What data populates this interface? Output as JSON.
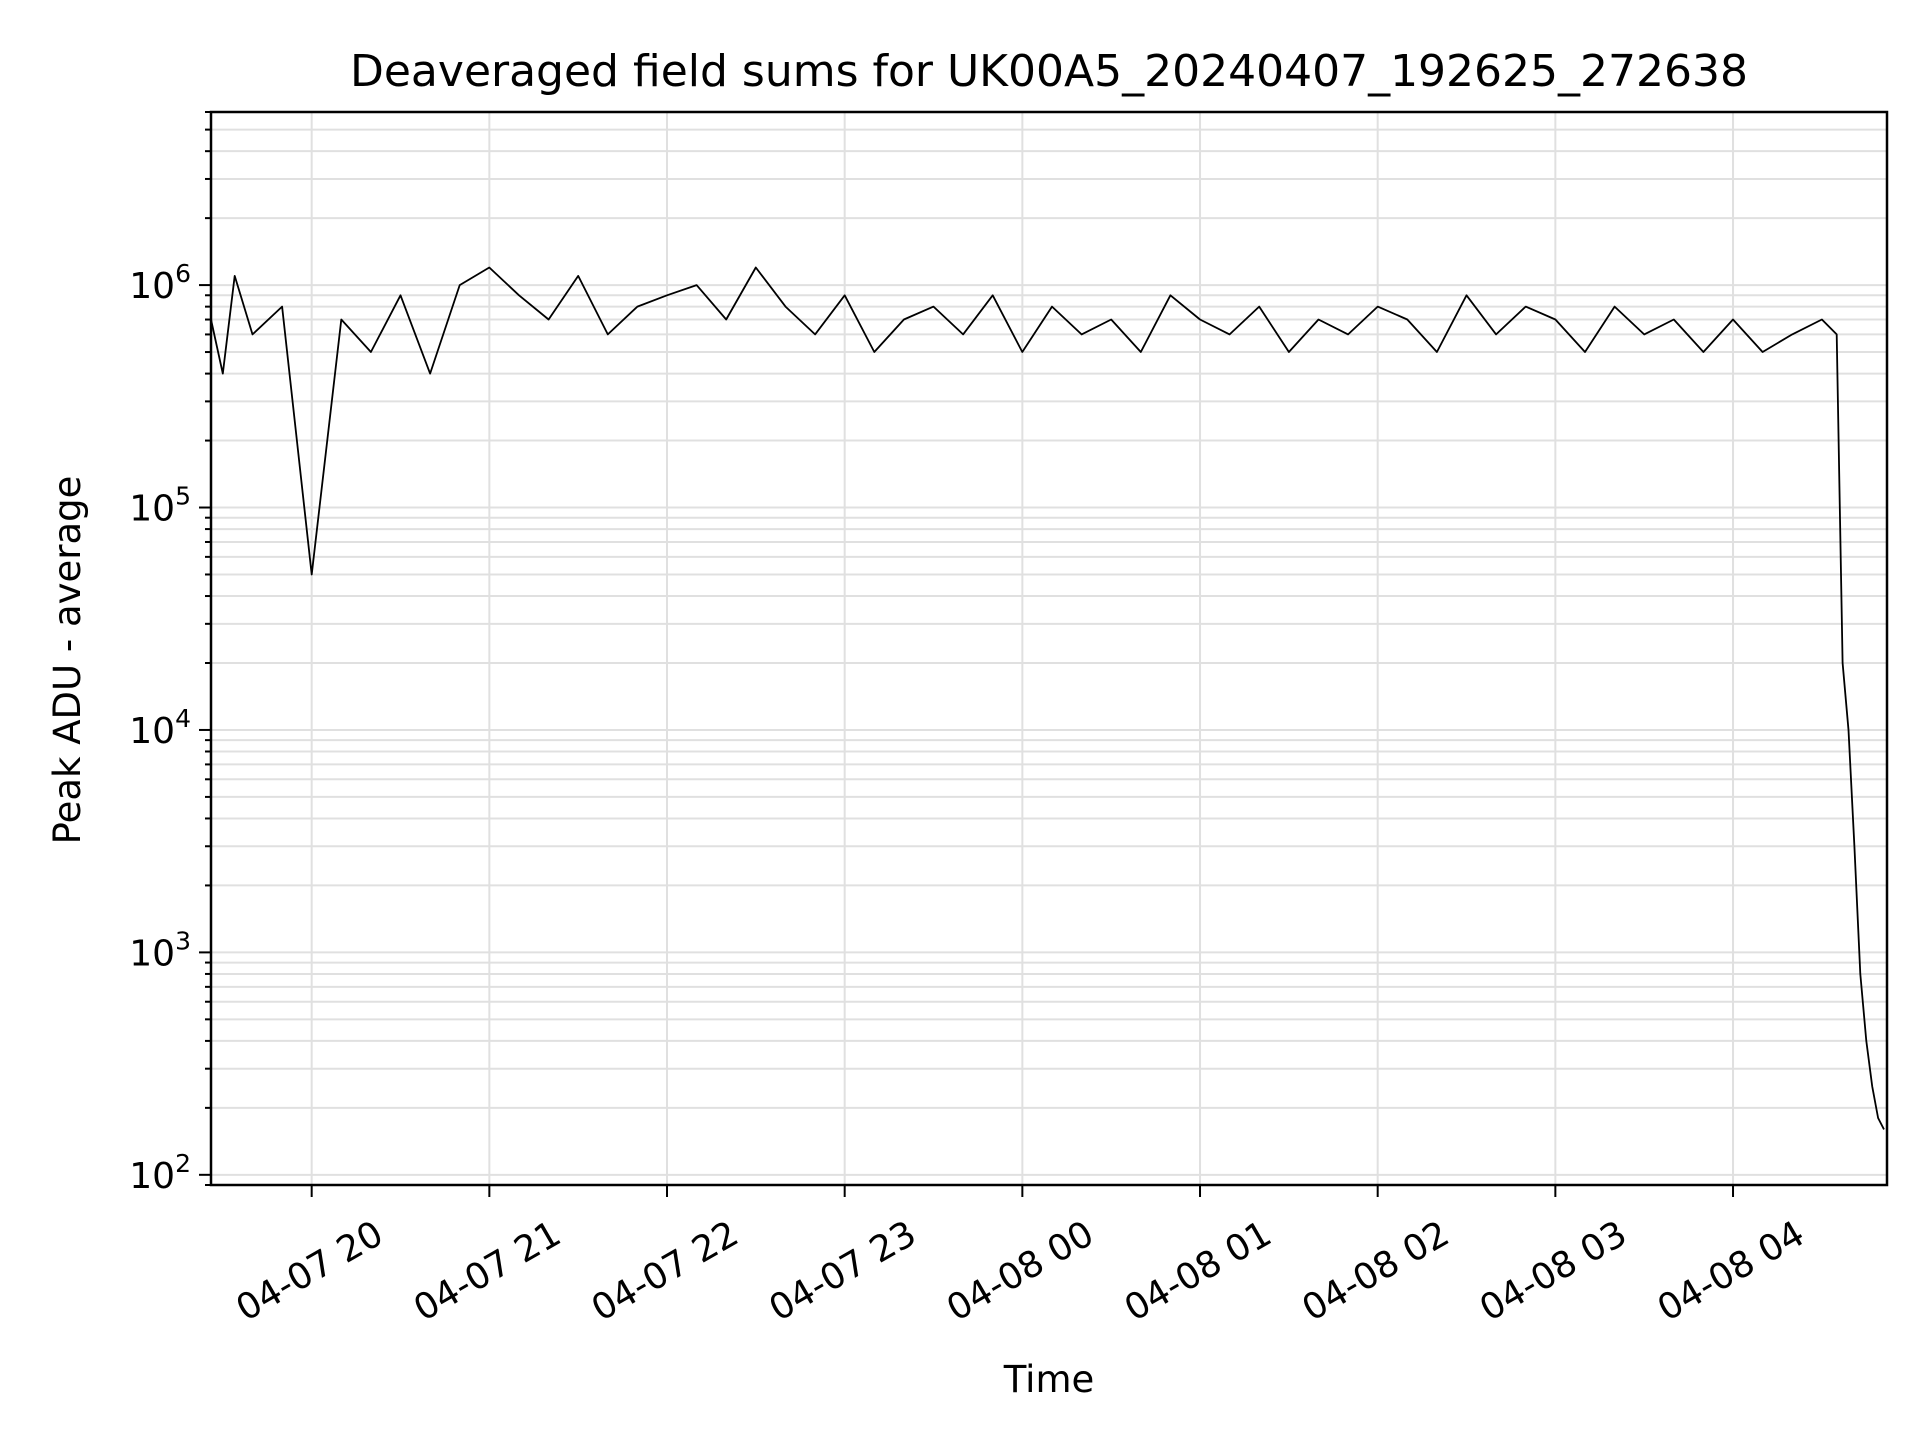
{
  "chart_data": {
    "type": "line",
    "title": "Deaveraged field sums for UK00A5_20240407_192625_272638",
    "xlabel": "Time",
    "ylabel": "Peak ADU - average",
    "x_type": "time",
    "xlim": [
      "2024-04-07 19:26",
      "2024-04-08 04:52"
    ],
    "yscale": "log",
    "ylim": [
      90,
      6000000
    ],
    "grid": true,
    "line_color": "#000000",
    "grid_color": "#e0e0e0",
    "x_ticks": [
      {
        "value": "2024-04-07 20:00",
        "label": "04-07 20"
      },
      {
        "value": "2024-04-07 21:00",
        "label": "04-07 21"
      },
      {
        "value": "2024-04-07 22:00",
        "label": "04-07 22"
      },
      {
        "value": "2024-04-07 23:00",
        "label": "04-07 23"
      },
      {
        "value": "2024-04-08 00:00",
        "label": "04-08 00"
      },
      {
        "value": "2024-04-08 01:00",
        "label": "04-08 01"
      },
      {
        "value": "2024-04-08 02:00",
        "label": "04-08 02"
      },
      {
        "value": "2024-04-08 03:00",
        "label": "04-08 03"
      },
      {
        "value": "2024-04-08 04:00",
        "label": "04-08 04"
      }
    ],
    "y_ticks": [
      {
        "value": 100,
        "base": "10",
        "exp": "2"
      },
      {
        "value": 1000,
        "base": "10",
        "exp": "3"
      },
      {
        "value": 10000,
        "base": "10",
        "exp": "4"
      },
      {
        "value": 100000,
        "base": "10",
        "exp": "5"
      },
      {
        "value": 1000000,
        "base": "10",
        "exp": "6"
      }
    ],
    "series": [
      {
        "x": [
          "2024-04-07 19:26",
          "2024-04-07 19:30",
          "2024-04-07 19:34",
          "2024-04-07 19:40",
          "2024-04-07 19:50",
          "2024-04-07 20:00",
          "2024-04-07 20:10",
          "2024-04-07 20:20",
          "2024-04-07 20:30",
          "2024-04-07 20:40",
          "2024-04-07 20:50",
          "2024-04-07 21:00",
          "2024-04-07 21:10",
          "2024-04-07 21:20",
          "2024-04-07 21:30",
          "2024-04-07 21:40",
          "2024-04-07 21:50",
          "2024-04-07 22:00",
          "2024-04-07 22:10",
          "2024-04-07 22:20",
          "2024-04-07 22:30",
          "2024-04-07 22:40",
          "2024-04-07 22:50",
          "2024-04-07 23:00",
          "2024-04-07 23:10",
          "2024-04-07 23:20",
          "2024-04-07 23:30",
          "2024-04-07 23:40",
          "2024-04-07 23:50",
          "2024-04-08 00:00",
          "2024-04-08 00:10",
          "2024-04-08 00:20",
          "2024-04-08 00:30",
          "2024-04-08 00:40",
          "2024-04-08 00:50",
          "2024-04-08 01:00",
          "2024-04-08 01:10",
          "2024-04-08 01:20",
          "2024-04-08 01:30",
          "2024-04-08 01:40",
          "2024-04-08 01:50",
          "2024-04-08 02:00",
          "2024-04-08 02:10",
          "2024-04-08 02:20",
          "2024-04-08 02:30",
          "2024-04-08 02:40",
          "2024-04-08 02:50",
          "2024-04-08 03:00",
          "2024-04-08 03:10",
          "2024-04-08 03:20",
          "2024-04-08 03:30",
          "2024-04-08 03:40",
          "2024-04-08 03:50",
          "2024-04-08 04:00",
          "2024-04-08 04:10",
          "2024-04-08 04:20",
          "2024-04-08 04:30",
          "2024-04-08 04:35",
          "2024-04-08 04:37",
          "2024-04-08 04:39",
          "2024-04-08 04:41",
          "2024-04-08 04:43",
          "2024-04-08 04:45",
          "2024-04-08 04:47",
          "2024-04-08 04:49",
          "2024-04-08 04:51"
        ],
        "y": [
          700000,
          400000,
          1100000,
          600000,
          800000,
          50000,
          700000,
          500000,
          900000,
          400000,
          1000000,
          1200000,
          900000,
          700000,
          1100000,
          600000,
          800000,
          900000,
          1000000,
          700000,
          1200000,
          800000,
          600000,
          900000,
          500000,
          700000,
          800000,
          600000,
          900000,
          500000,
          800000,
          600000,
          700000,
          500000,
          900000,
          700000,
          600000,
          800000,
          500000,
          700000,
          600000,
          800000,
          700000,
          500000,
          900000,
          600000,
          800000,
          700000,
          500000,
          800000,
          600000,
          700000,
          500000,
          700000,
          500000,
          600000,
          700000,
          600000,
          20000,
          10000,
          3000,
          800,
          400,
          250,
          180,
          160
        ]
      }
    ]
  }
}
